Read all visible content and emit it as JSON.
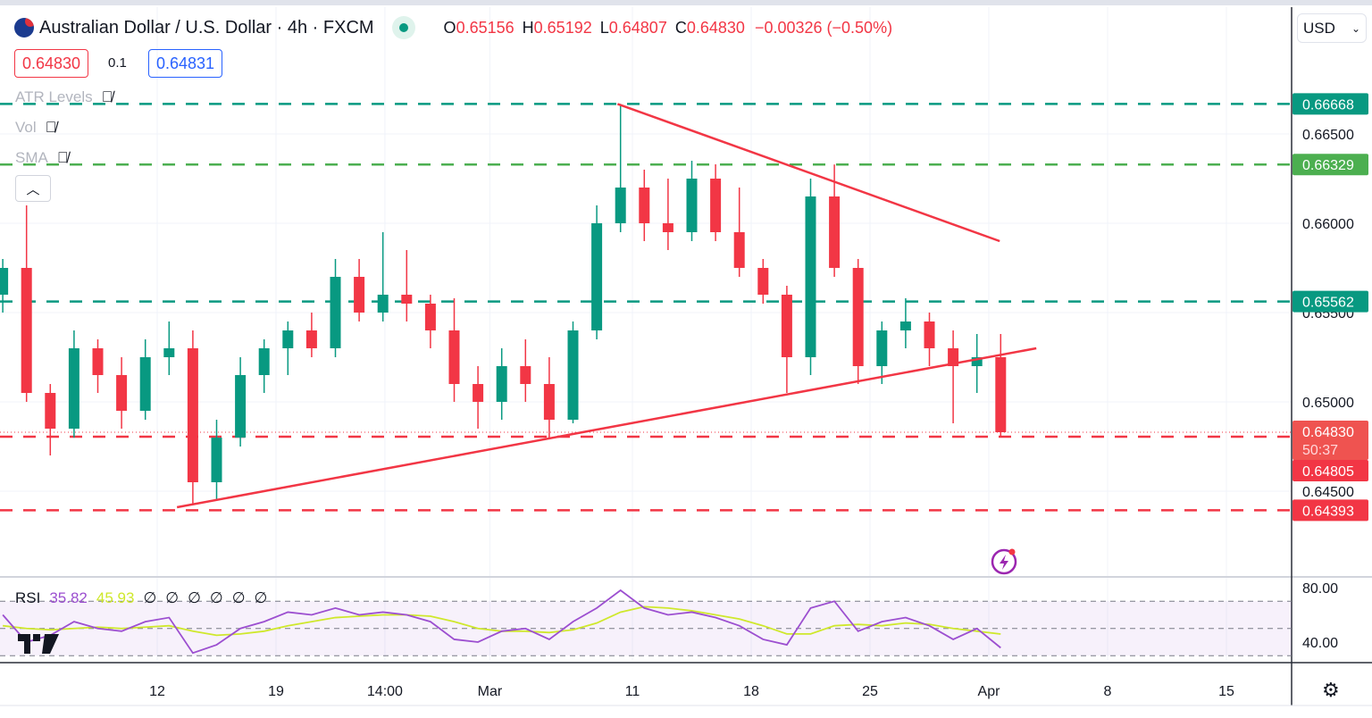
{
  "header": {
    "symbol_title": "Australian Dollar / U.S. Dollar · 4h · FXCM",
    "market_status": "open",
    "ohlc": {
      "o_label": "O",
      "o": "0.65156",
      "h_label": "H",
      "h": "0.65192",
      "l_label": "L",
      "l": "0.64807",
      "c_label": "C",
      "c": "0.64830",
      "change": "−0.00326 (−0.50%)"
    },
    "sell_price": "0.64830",
    "spread": "0.1",
    "buy_price": "0.64831",
    "indicators": [
      {
        "label": "ATR Levels",
        "hidden": true
      },
      {
        "label": "Vol",
        "hidden": true
      },
      {
        "label": "SMA",
        "hidden": true
      }
    ],
    "collapse_icon": "chevron-up-icon"
  },
  "currency_select": {
    "value": "USD"
  },
  "rsi_legend": {
    "label": "RSI",
    "rsi": "35.82",
    "ma": "45.93",
    "extra_values": [
      "∅",
      "∅",
      "∅",
      "∅",
      "∅",
      "∅"
    ]
  },
  "price_labels": {
    "last": "0.64830",
    "countdown": "50:37"
  },
  "colors": {
    "up": "#089981",
    "down": "#f23645",
    "teal_level": "#089981",
    "green_level": "#4caf50",
    "red_level": "#f23645",
    "trendline": "#f23645",
    "rsi": "#9c4fd0",
    "rsi_ma": "#cfe82c"
  },
  "chart_data": {
    "type": "candlestick",
    "title": "",
    "price_axis": {
      "range": [
        0.6425,
        0.6685
      ],
      "ticks": [
        "0.66500",
        "0.66000",
        "0.65500",
        "0.65000",
        "0.64500"
      ]
    },
    "time_axis": {
      "ticks": [
        {
          "label": "12",
          "at": "Feb 12 00:00"
        },
        {
          "label": "19",
          "at": "Feb 19 00:00"
        },
        {
          "label": "14:00",
          "at": "Feb 23 14:00"
        },
        {
          "label": "Mar",
          "at": "Mar 1 00:00"
        },
        {
          "label": "11",
          "at": "Mar 11 00:00"
        },
        {
          "label": "18",
          "at": "Mar 18 00:00"
        },
        {
          "label": "25",
          "at": "Mar 25 00:00"
        },
        {
          "label": "Apr",
          "at": "Apr 1 00:00"
        },
        {
          "label": "8",
          "at": "Apr 8 00:00"
        },
        {
          "label": "15",
          "at": "Apr 15 00:00"
        }
      ]
    },
    "candles": [
      {
        "t": "Feb 1",
        "o": 0.656,
        "h": 0.658,
        "l": 0.655,
        "c": 0.6575
      },
      {
        "t": "Feb 2",
        "o": 0.6575,
        "h": 0.661,
        "l": 0.65,
        "c": 0.6505
      },
      {
        "t": "Feb 5",
        "o": 0.6505,
        "h": 0.651,
        "l": 0.647,
        "c": 0.6485
      },
      {
        "t": "Feb 6",
        "o": 0.6485,
        "h": 0.654,
        "l": 0.648,
        "c": 0.653
      },
      {
        "t": "Feb 7",
        "o": 0.653,
        "h": 0.6535,
        "l": 0.6505,
        "c": 0.6515
      },
      {
        "t": "Feb 8",
        "o": 0.6515,
        "h": 0.6525,
        "l": 0.6485,
        "c": 0.6495
      },
      {
        "t": "Feb 9",
        "o": 0.6495,
        "h": 0.6535,
        "l": 0.649,
        "c": 0.6525
      },
      {
        "t": "Feb 12",
        "o": 0.6525,
        "h": 0.6545,
        "l": 0.6515,
        "c": 0.653
      },
      {
        "t": "Feb 13",
        "o": 0.653,
        "h": 0.654,
        "l": 0.6443,
        "c": 0.6455
      },
      {
        "t": "Feb 14",
        "o": 0.6455,
        "h": 0.649,
        "l": 0.6445,
        "c": 0.648
      },
      {
        "t": "Feb 15",
        "o": 0.648,
        "h": 0.6525,
        "l": 0.6475,
        "c": 0.6515
      },
      {
        "t": "Feb 16",
        "o": 0.6515,
        "h": 0.6535,
        "l": 0.6505,
        "c": 0.653
      },
      {
        "t": "Feb 19",
        "o": 0.653,
        "h": 0.6545,
        "l": 0.6515,
        "c": 0.654
      },
      {
        "t": "Feb 20",
        "o": 0.654,
        "h": 0.655,
        "l": 0.6525,
        "c": 0.653
      },
      {
        "t": "Feb 21",
        "o": 0.653,
        "h": 0.658,
        "l": 0.6525,
        "c": 0.657
      },
      {
        "t": "Feb 22",
        "o": 0.657,
        "h": 0.658,
        "l": 0.6545,
        "c": 0.655
      },
      {
        "t": "Feb 23",
        "o": 0.655,
        "h": 0.6595,
        "l": 0.6545,
        "c": 0.656
      },
      {
        "t": "Feb 26",
        "o": 0.656,
        "h": 0.6585,
        "l": 0.6545,
        "c": 0.6555
      },
      {
        "t": "Feb 27",
        "o": 0.6555,
        "h": 0.656,
        "l": 0.653,
        "c": 0.654
      },
      {
        "t": "Feb 28",
        "o": 0.654,
        "h": 0.6558,
        "l": 0.65,
        "c": 0.651
      },
      {
        "t": "Feb 29",
        "o": 0.651,
        "h": 0.652,
        "l": 0.6485,
        "c": 0.65
      },
      {
        "t": "Mar 1",
        "o": 0.65,
        "h": 0.653,
        "l": 0.649,
        "c": 0.652
      },
      {
        "t": "Mar 4",
        "o": 0.652,
        "h": 0.6535,
        "l": 0.65,
        "c": 0.651
      },
      {
        "t": "Mar 5",
        "o": 0.651,
        "h": 0.6525,
        "l": 0.648,
        "c": 0.649
      },
      {
        "t": "Mar 6",
        "o": 0.649,
        "h": 0.6545,
        "l": 0.6488,
        "c": 0.654
      },
      {
        "t": "Mar 7",
        "o": 0.654,
        "h": 0.661,
        "l": 0.6535,
        "c": 0.66
      },
      {
        "t": "Mar 8",
        "o": 0.66,
        "h": 0.66668,
        "l": 0.6595,
        "c": 0.662
      },
      {
        "t": "Mar 11",
        "o": 0.662,
        "h": 0.663,
        "l": 0.659,
        "c": 0.66
      },
      {
        "t": "Mar 12",
        "o": 0.66,
        "h": 0.6625,
        "l": 0.6585,
        "c": 0.6595
      },
      {
        "t": "Mar 13",
        "o": 0.6595,
        "h": 0.6635,
        "l": 0.659,
        "c": 0.6625
      },
      {
        "t": "Mar 14",
        "o": 0.6625,
        "h": 0.6633,
        "l": 0.659,
        "c": 0.6595
      },
      {
        "t": "Mar 15",
        "o": 0.6595,
        "h": 0.662,
        "l": 0.657,
        "c": 0.6575
      },
      {
        "t": "Mar 18",
        "o": 0.6575,
        "h": 0.658,
        "l": 0.6555,
        "c": 0.656
      },
      {
        "t": "Mar 19",
        "o": 0.656,
        "h": 0.6565,
        "l": 0.6505,
        "c": 0.6525
      },
      {
        "t": "Mar 20",
        "o": 0.6525,
        "h": 0.6625,
        "l": 0.6515,
        "c": 0.6615
      },
      {
        "t": "Mar 21",
        "o": 0.6615,
        "h": 0.66329,
        "l": 0.657,
        "c": 0.6575
      },
      {
        "t": "Mar 22",
        "o": 0.6575,
        "h": 0.658,
        "l": 0.651,
        "c": 0.652
      },
      {
        "t": "Mar 25",
        "o": 0.652,
        "h": 0.6545,
        "l": 0.651,
        "c": 0.654
      },
      {
        "t": "Mar 26",
        "o": 0.654,
        "h": 0.6558,
        "l": 0.653,
        "c": 0.6545
      },
      {
        "t": "Mar 27",
        "o": 0.6545,
        "h": 0.655,
        "l": 0.652,
        "c": 0.653
      },
      {
        "t": "Mar 28",
        "o": 0.653,
        "h": 0.654,
        "l": 0.6488,
        "c": 0.652
      },
      {
        "t": "Mar 29",
        "o": 0.652,
        "h": 0.6538,
        "l": 0.6505,
        "c": 0.6525
      },
      {
        "t": "Apr 1",
        "o": 0.6525,
        "h": 0.6538,
        "l": 0.64807,
        "c": 0.6483
      }
    ],
    "levels": [
      {
        "price": 0.66668,
        "label": "0.66668",
        "color": "#089981"
      },
      {
        "price": 0.66329,
        "label": "0.66329",
        "color": "#4caf50"
      },
      {
        "price": 0.65562,
        "label": "0.65562",
        "color": "#089981"
      },
      {
        "price": 0.64805,
        "label": "0.64805",
        "color": "#f23645"
      },
      {
        "price": 0.64393,
        "label": "0.64393",
        "color": "#f23645"
      }
    ],
    "last_price": 0.6483,
    "trendlines": [
      {
        "from": {
          "t": "Mar 8 09:00",
          "price": 0.66668
        },
        "to": {
          "t": "Apr 1 11:00",
          "price": 0.659
        }
      },
      {
        "from": {
          "t": "Feb 12 20:00",
          "price": 0.6441
        },
        "to": {
          "t": "Apr 3 00:00",
          "price": 0.653
        }
      }
    ],
    "rsi": {
      "range": [
        20,
        90
      ],
      "ticks": [
        "80.00",
        "40.00"
      ],
      "bands": [
        70,
        50,
        30
      ],
      "values": [
        60,
        40,
        45,
        55,
        50,
        48,
        55,
        58,
        32,
        38,
        50,
        55,
        62,
        60,
        65,
        60,
        62,
        60,
        55,
        42,
        40,
        48,
        50,
        42,
        55,
        65,
        78,
        65,
        60,
        62,
        58,
        52,
        42,
        38,
        65,
        70,
        48,
        55,
        58,
        52,
        42,
        50,
        35.82
      ],
      "ma": [
        52,
        50,
        49,
        50,
        51,
        50,
        51,
        52,
        48,
        45,
        46,
        48,
        52,
        55,
        58,
        59,
        60,
        60,
        59,
        55,
        50,
        48,
        48,
        47,
        49,
        54,
        62,
        66,
        65,
        63,
        60,
        57,
        52,
        46,
        46,
        52,
        53,
        52,
        54,
        53,
        50,
        48,
        45.93
      ]
    }
  }
}
